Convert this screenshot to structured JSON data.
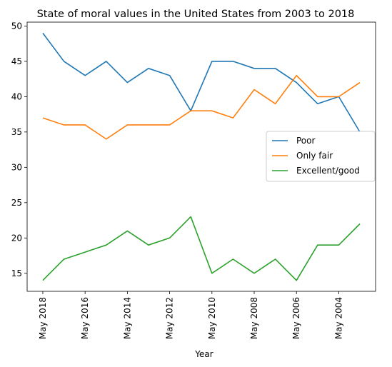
{
  "chart_data": {
    "type": "line",
    "title": "State of moral values in the United States from 2003 to 2018",
    "xlabel": "Year",
    "ylabel": "",
    "x": [
      "May 2018",
      "May 2017",
      "May 2016",
      "May 2015",
      "May 2014",
      "May 2013",
      "May 2012",
      "May 2011",
      "May 2010",
      "May 2009",
      "May 2008",
      "May 2007",
      "May 2006",
      "May 2005",
      "May 2004",
      "May 2003"
    ],
    "x_tick_labels": [
      "May 2018",
      "May 2016",
      "May 2014",
      "May 2012",
      "May 2010",
      "May 2008",
      "May 2006",
      "May 2004"
    ],
    "y_ticks": [
      15,
      20,
      25,
      30,
      35,
      40,
      45,
      50
    ],
    "ylim": [
      12.45,
      50.55
    ],
    "grid": false,
    "legend_position": "center-right",
    "series": [
      {
        "name": "Poor",
        "color": "#1f77b4",
        "values": [
          49,
          45,
          43,
          45,
          42,
          44,
          43,
          38,
          45,
          45,
          44,
          44,
          42,
          39,
          40,
          35
        ]
      },
      {
        "name": "Only fair",
        "color": "#ff7f0e",
        "values": [
          37,
          36,
          36,
          34,
          36,
          36,
          36,
          38,
          38,
          37,
          41,
          39,
          43,
          40,
          40,
          42
        ]
      },
      {
        "name": "Excellent/good",
        "color": "#2ca02c",
        "values": [
          14,
          17,
          18,
          19,
          21,
          19,
          20,
          23,
          15,
          17,
          15,
          17,
          14,
          19,
          19,
          22
        ]
      }
    ]
  }
}
